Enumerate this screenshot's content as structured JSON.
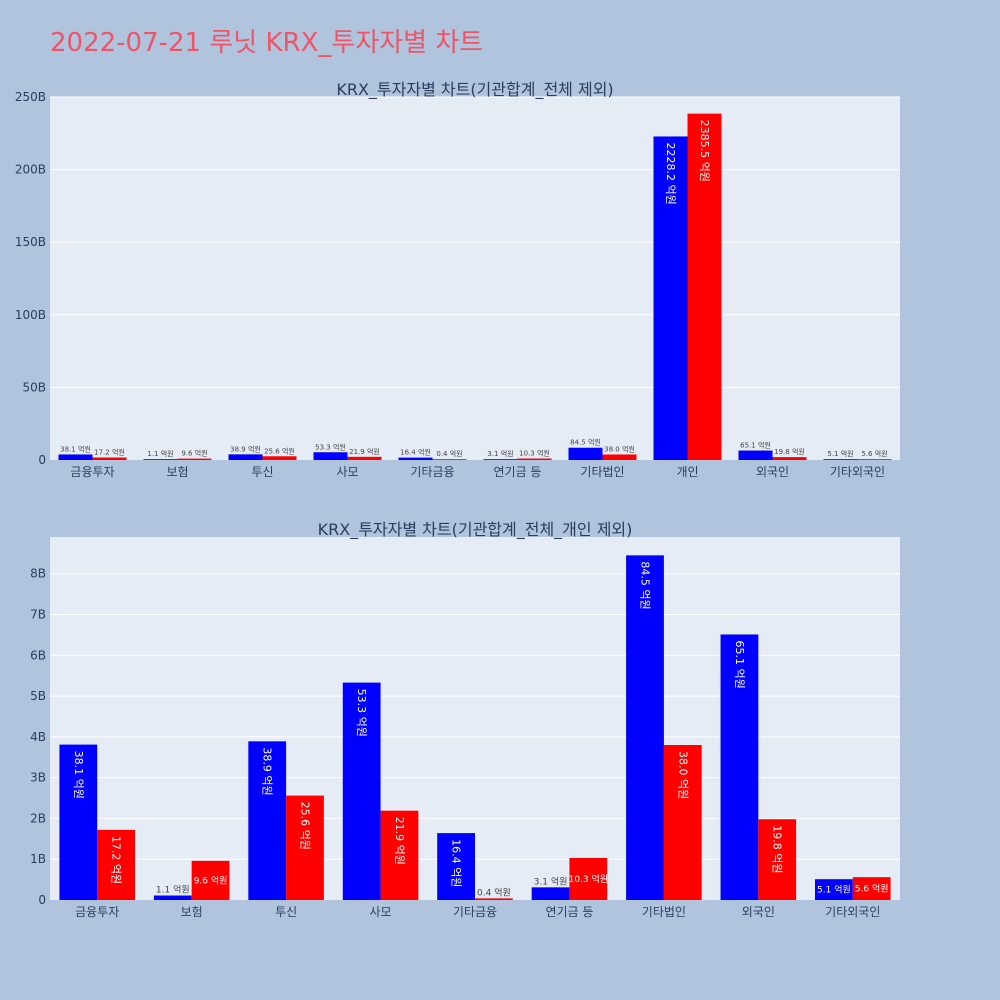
{
  "page_title": "2022-07-21 루닛 KRX_투자자별 차트",
  "colors": {
    "background": "#b0c4de",
    "plot_bg": "#e5ecf6",
    "series_buy": "#0000ff",
    "series_sell": "#ff0000",
    "title": "#ef5567"
  },
  "chart_data": [
    {
      "type": "bar",
      "title": "KRX_투자자별 차트(기관합계_전체 제외)",
      "categories": [
        "금융투자",
        "보험",
        "투신",
        "사모",
        "기타금융",
        "연기금 등",
        "기타법인",
        "개인",
        "외국인",
        "기타외국인"
      ],
      "series": [
        {
          "values": [
            3.81,
            0.11,
            3.89,
            5.33,
            1.64,
            0.31,
            8.45,
            222.82,
            6.51,
            0.51
          ],
          "labels": [
            "38.1 억원",
            "1.1 억원",
            "38.9 억원",
            "53.3 억원",
            "16.4 억원",
            "3.1 억원",
            "84.5 억원",
            "2228.2 억원",
            "65.1 억원",
            "5.1 억원"
          ]
        },
        {
          "values": [
            1.72,
            0.96,
            2.56,
            2.19,
            0.04,
            1.03,
            3.8,
            238.55,
            1.98,
            0.56
          ],
          "labels": [
            "17.2 억원",
            "9.6 억원",
            "25.6 억원",
            "21.9 억원",
            "0.4 억원",
            "10.3 억원",
            "38.0 억원",
            "2385.5 억원",
            "19.8 억원",
            "5.6 억원"
          ]
        }
      ],
      "yticks": [
        "0",
        "50B",
        "100B",
        "150B",
        "200B",
        "250B"
      ],
      "ytick_values": [
        0,
        50,
        100,
        150,
        200,
        250
      ],
      "ylim": [
        0,
        250
      ],
      "grid": true
    },
    {
      "type": "bar",
      "title": "KRX_투자자별 차트(기관합계_전체_개인 제외)",
      "categories": [
        "금융투자",
        "보험",
        "투신",
        "사모",
        "기타금융",
        "연기금 등",
        "기타법인",
        "외국인",
        "기타외국인"
      ],
      "series": [
        {
          "values": [
            3.81,
            0.11,
            3.89,
            5.33,
            1.64,
            0.31,
            8.45,
            6.51,
            0.51
          ],
          "labels": [
            "38.1 억원",
            "1.1 억원",
            "38.9 억원",
            "53.3 억원",
            "16.4 억원",
            "3.1 억원",
            "84.5 억원",
            "65.1 억원",
            "5.1 억원"
          ]
        },
        {
          "values": [
            1.72,
            0.96,
            2.56,
            2.19,
            0.04,
            1.03,
            3.8,
            1.98,
            0.56
          ],
          "labels": [
            "17.2 억원",
            "9.6 억원",
            "25.6 억원",
            "21.9 억원",
            "0.4 억원",
            "10.3 억원",
            "38.0 억원",
            "19.8 억원",
            "5.6 억원"
          ]
        }
      ],
      "yticks": [
        "0",
        "1B",
        "2B",
        "3B",
        "4B",
        "5B",
        "6B",
        "7B",
        "8B"
      ],
      "ytick_values": [
        0,
        1,
        2,
        3,
        4,
        5,
        6,
        7,
        8
      ],
      "ylim": [
        0,
        8.9
      ],
      "grid": true
    }
  ]
}
